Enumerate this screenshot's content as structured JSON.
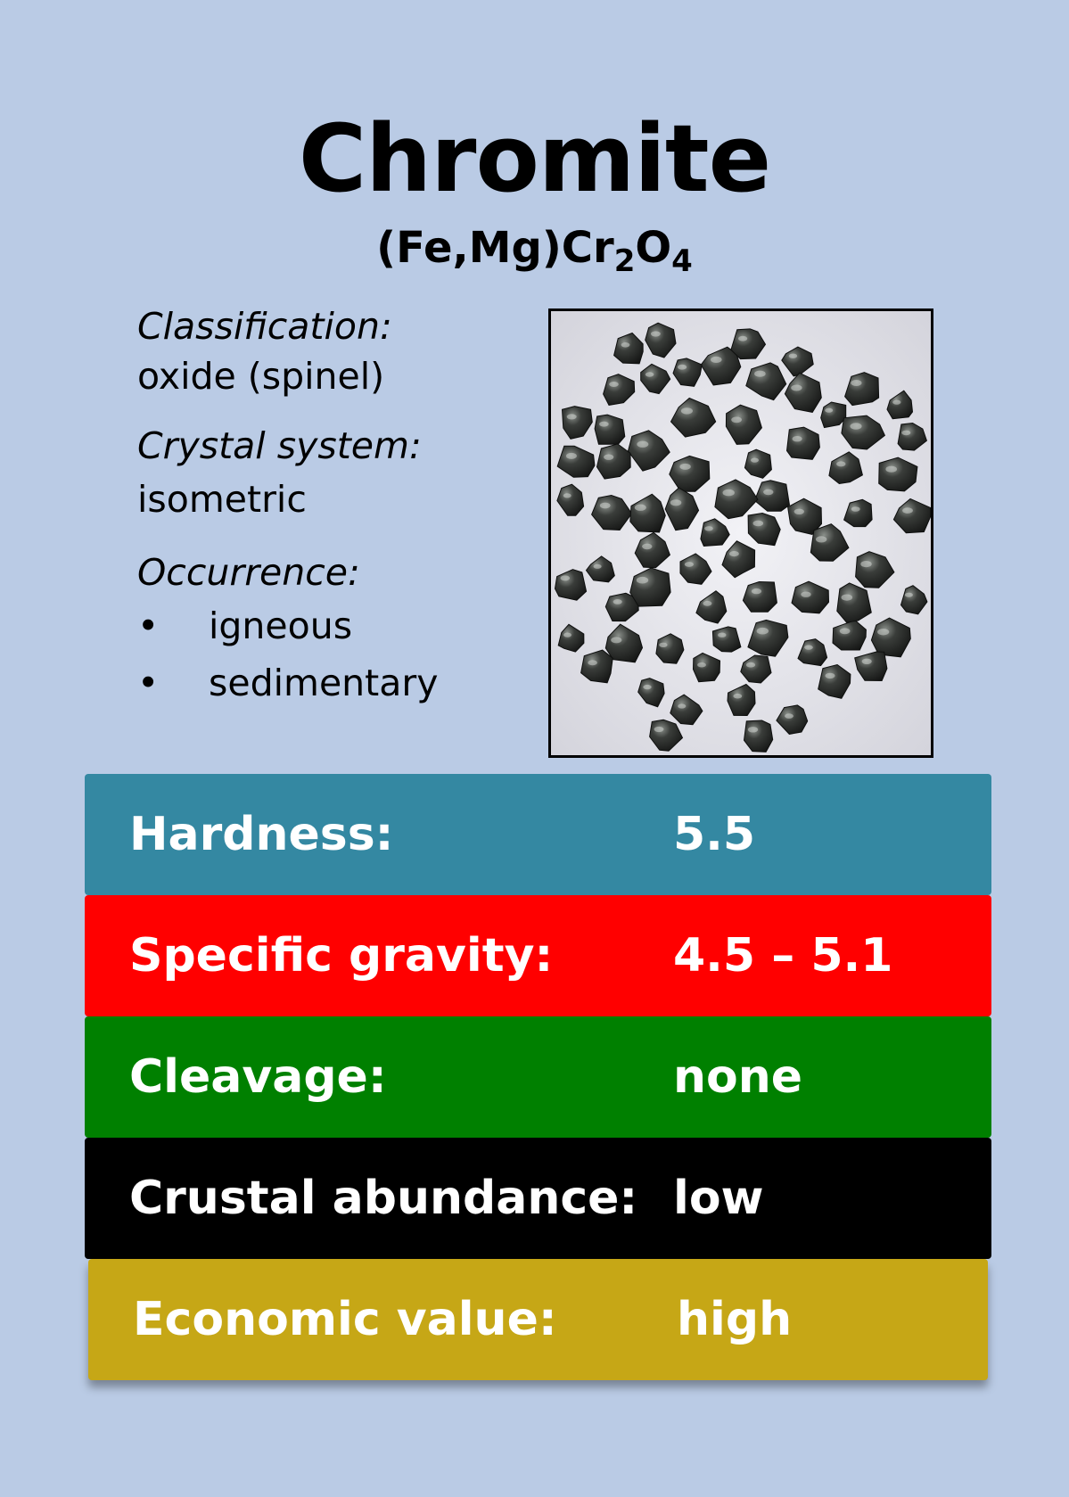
{
  "title": "Chromite",
  "formula": {
    "part1": "(Fe,Mg)Cr",
    "sub1": "2",
    "part2": "O",
    "sub2": "4"
  },
  "classification": {
    "label": "Classification:",
    "value": "oxide (spinel)"
  },
  "crystal_system": {
    "label": "Crystal system:",
    "value": "isometric"
  },
  "occurrence": {
    "label": "Occurrence:",
    "items": [
      "igneous",
      "sedimentary"
    ],
    "bullet": "•"
  },
  "photo": {
    "subject": "chromite-grains-photo"
  },
  "properties": [
    {
      "label": "Hardness:",
      "value": "5.5",
      "color": "#3488a2"
    },
    {
      "label": "Specific gravity:",
      "value": "4.5 – 5.1",
      "color": "#ff0000"
    },
    {
      "label": "Cleavage:",
      "value": "none",
      "color": "#008000"
    },
    {
      "label": "Crustal abundance:",
      "value": "low",
      "color": "#000000"
    },
    {
      "label": "Economic value:",
      "value": "high",
      "color": "#c6a716"
    }
  ]
}
